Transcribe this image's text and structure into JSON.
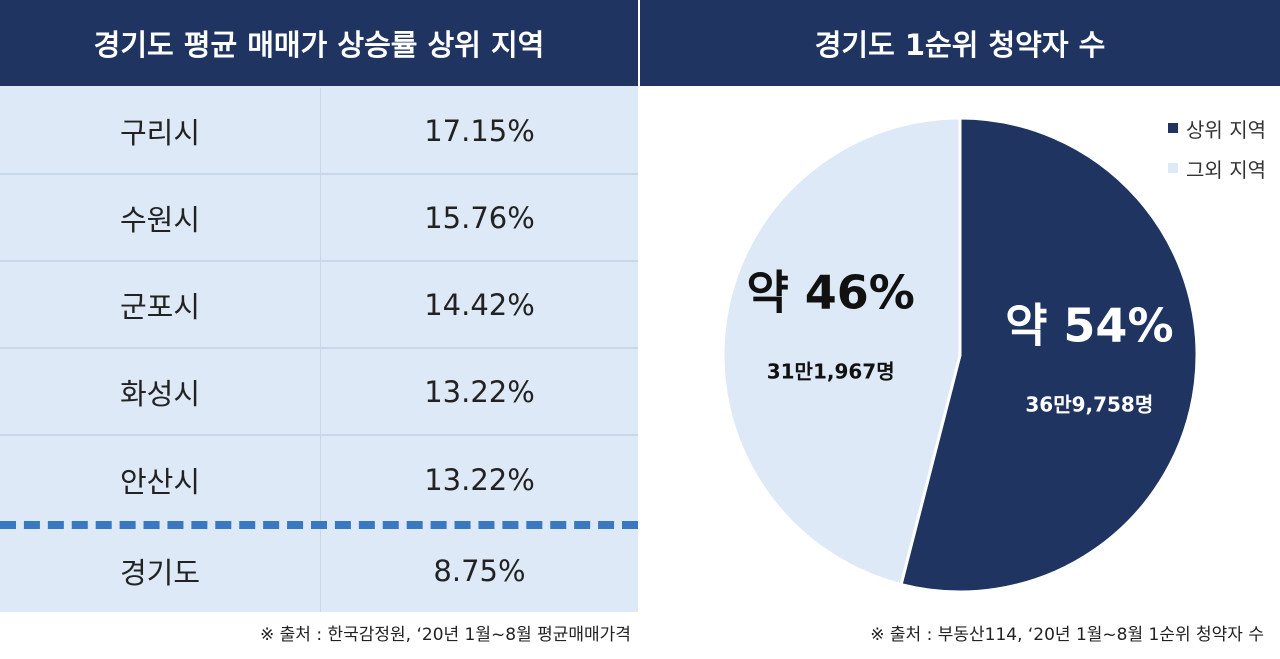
{
  "left": {
    "title": "경기도 평균 매매가 상승률 상위 지역",
    "rows": [
      {
        "region": "구리시",
        "rate": "17.15%"
      },
      {
        "region": "수원시",
        "rate": "15.76%"
      },
      {
        "region": "군포시",
        "rate": "14.42%"
      },
      {
        "region": "화성시",
        "rate": "13.22%"
      },
      {
        "region": "안산시",
        "rate": "13.22%"
      }
    ],
    "total": {
      "region": "경기도",
      "rate": "8.75%"
    },
    "source": "※ 출처 : 한국감정원, ‘20년 1월~8월 평균매매가격"
  },
  "right": {
    "title": "경기도 1순위 청약자 수",
    "source": "※ 출처 : 부동산114, ‘20년 1월~8월 1순위 청약자 수"
  },
  "chart_data": [
    {
      "type": "table",
      "title": "경기도 평균 매매가 상승률 상위 지역",
      "columns": [
        "",
        ""
      ],
      "rows": [
        [
          "구리시",
          "17.15%"
        ],
        [
          "수원시",
          "15.76%"
        ],
        [
          "군포시",
          "14.42%"
        ],
        [
          "화성시",
          "13.22%"
        ],
        [
          "안산시",
          "13.22%"
        ],
        [
          "경기도",
          "8.75%"
        ]
      ]
    },
    {
      "type": "pie",
      "title": "경기도 1순위 청약자 수",
      "legend_placement": "top-right",
      "slices": [
        {
          "name": "상위 지역",
          "value": 54,
          "percent_label": "약 54%",
          "count_label": "36만9,758명",
          "color": "#1f3461"
        },
        {
          "name": "그외 지역",
          "value": 46,
          "percent_label": "약 46%",
          "count_label": "31만1,967명",
          "color": "#dde9f6"
        }
      ]
    }
  ]
}
